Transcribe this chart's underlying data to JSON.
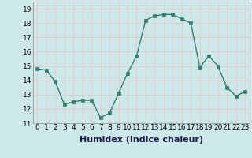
{
  "x": [
    0,
    1,
    2,
    3,
    4,
    5,
    6,
    7,
    8,
    9,
    10,
    11,
    12,
    13,
    14,
    15,
    16,
    17,
    18,
    19,
    20,
    21,
    22,
    23
  ],
  "y": [
    14.8,
    14.7,
    13.9,
    12.3,
    12.5,
    12.6,
    12.6,
    11.4,
    11.7,
    13.1,
    14.5,
    15.7,
    18.2,
    18.5,
    18.6,
    18.6,
    18.3,
    18.0,
    14.9,
    15.7,
    15.0,
    13.5,
    12.9,
    13.2
  ],
  "line_color": "#2e7d6e",
  "marker": "s",
  "markersize": 2.5,
  "linewidth": 1.0,
  "bg_color": "#cce8e8",
  "grid_color": "#e8c8c8",
  "xlabel": "Humidex (Indice chaleur)",
  "xlabel_fontsize": 8,
  "ylim": [
    11,
    19.5
  ],
  "yticks": [
    11,
    12,
    13,
    14,
    15,
    16,
    17,
    18,
    19
  ],
  "xtick_labels": [
    "0",
    "1",
    "2",
    "3",
    "4",
    "5",
    "6",
    "7",
    "8",
    "9",
    "10",
    "11",
    "12",
    "13",
    "14",
    "15",
    "16",
    "17",
    "18",
    "19",
    "20",
    "21",
    "22",
    "23"
  ],
  "tick_fontsize": 6.5
}
